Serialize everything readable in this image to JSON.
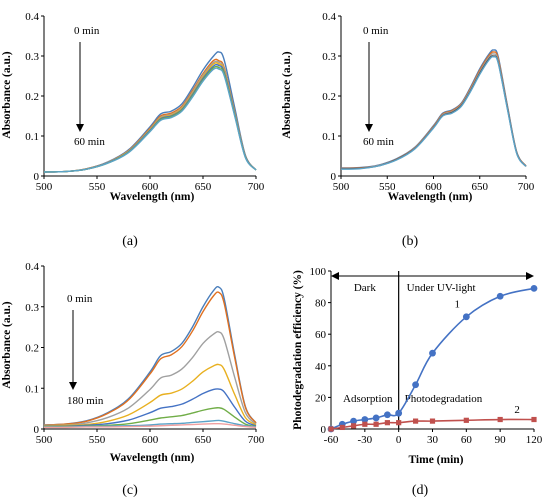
{
  "chart_data": [
    {
      "type": "line",
      "panel_label": "(a)",
      "xlabel": "Wavelength (nm)",
      "ylabel": "Absorbance (a.u.)",
      "xlim": [
        500,
        700
      ],
      "ylim": [
        0,
        0.4
      ],
      "x_ticks": [
        500,
        550,
        600,
        650,
        700
      ],
      "y_ticks": [
        0,
        0.1,
        0.2,
        0.3,
        0.4
      ],
      "annotations": {
        "start": "0 min",
        "end": "60 min"
      },
      "x": [
        500,
        520,
        540,
        560,
        580,
        600,
        610,
        620,
        630,
        640,
        650,
        660,
        665,
        670,
        680,
        690,
        700
      ],
      "series": [
        {
          "color": "#4a7ebb",
          "values": [
            0.01,
            0.011,
            0.018,
            0.035,
            0.066,
            0.123,
            0.155,
            0.162,
            0.18,
            0.22,
            0.265,
            0.3,
            0.31,
            0.29,
            0.17,
            0.052,
            0.015
          ]
        },
        {
          "color": "#e07020",
          "values": [
            0.01,
            0.011,
            0.018,
            0.034,
            0.064,
            0.119,
            0.15,
            0.157,
            0.174,
            0.213,
            0.256,
            0.289,
            0.288,
            0.271,
            0.16,
            0.05,
            0.015
          ]
        },
        {
          "color": "#a0a0a0",
          "values": [
            0.01,
            0.011,
            0.017,
            0.034,
            0.063,
            0.117,
            0.147,
            0.154,
            0.171,
            0.209,
            0.252,
            0.284,
            0.284,
            0.267,
            0.158,
            0.049,
            0.015
          ]
        },
        {
          "color": "#e8b020",
          "values": [
            0.01,
            0.011,
            0.017,
            0.033,
            0.062,
            0.116,
            0.145,
            0.152,
            0.169,
            0.206,
            0.248,
            0.28,
            0.28,
            0.263,
            0.156,
            0.048,
            0.015
          ]
        },
        {
          "color": "#4472c4",
          "values": [
            0.01,
            0.011,
            0.017,
            0.033,
            0.061,
            0.114,
            0.143,
            0.15,
            0.166,
            0.203,
            0.244,
            0.275,
            0.276,
            0.259,
            0.154,
            0.048,
            0.015
          ]
        },
        {
          "color": "#70ad47",
          "values": [
            0.01,
            0.011,
            0.017,
            0.032,
            0.06,
            0.112,
            0.141,
            0.148,
            0.164,
            0.2,
            0.24,
            0.271,
            0.271,
            0.255,
            0.151,
            0.047,
            0.015
          ]
        },
        {
          "color": "#5ba3c8",
          "values": [
            0.01,
            0.011,
            0.017,
            0.032,
            0.059,
            0.111,
            0.139,
            0.146,
            0.162,
            0.197,
            0.237,
            0.267,
            0.267,
            0.251,
            0.149,
            0.046,
            0.015
          ]
        }
      ]
    },
    {
      "type": "line",
      "panel_label": "(b)",
      "xlabel": "Wavelength (nm)",
      "ylabel": "Absorbance (a.u.)",
      "xlim": [
        500,
        700
      ],
      "ylim": [
        0,
        0.4
      ],
      "x_ticks": [
        500,
        550,
        600,
        650,
        700
      ],
      "y_ticks": [
        0,
        0.1,
        0.2,
        0.3,
        0.4
      ],
      "annotations": {
        "start": "0 min",
        "end": "60 min"
      },
      "x": [
        500,
        520,
        540,
        560,
        580,
        600,
        610,
        620,
        630,
        640,
        650,
        660,
        665,
        670,
        680,
        690,
        700
      ],
      "series": [
        {
          "color": "#4a7ebb",
          "values": [
            0.02,
            0.021,
            0.027,
            0.043,
            0.072,
            0.126,
            0.157,
            0.165,
            0.182,
            0.222,
            0.268,
            0.305,
            0.315,
            0.298,
            0.175,
            0.06,
            0.025
          ]
        },
        {
          "color": "#e07020",
          "values": [
            0.019,
            0.02,
            0.026,
            0.042,
            0.071,
            0.124,
            0.155,
            0.163,
            0.18,
            0.219,
            0.264,
            0.301,
            0.31,
            0.293,
            0.172,
            0.059,
            0.025
          ]
        },
        {
          "color": "#a0a0a0",
          "values": [
            0.018,
            0.019,
            0.026,
            0.041,
            0.07,
            0.122,
            0.153,
            0.161,
            0.178,
            0.216,
            0.26,
            0.297,
            0.305,
            0.288,
            0.17,
            0.058,
            0.024
          ]
        },
        {
          "color": "#555555",
          "values": [
            0.018,
            0.019,
            0.025,
            0.041,
            0.069,
            0.121,
            0.151,
            0.159,
            0.176,
            0.213,
            0.257,
            0.293,
            0.3,
            0.284,
            0.168,
            0.057,
            0.024
          ]
        },
        {
          "color": "#5ba3c8",
          "values": [
            0.017,
            0.018,
            0.025,
            0.04,
            0.068,
            0.12,
            0.15,
            0.157,
            0.174,
            0.211,
            0.254,
            0.29,
            0.298,
            0.282,
            0.166,
            0.056,
            0.024
          ]
        }
      ]
    },
    {
      "type": "line",
      "panel_label": "(c)",
      "xlabel": "Wavelength (nm)",
      "ylabel": "Absorbance (a.u.)",
      "xlim": [
        500,
        700
      ],
      "ylim": [
        0,
        0.4
      ],
      "x_ticks": [
        500,
        550,
        600,
        650,
        700
      ],
      "y_ticks": [
        0,
        0.1,
        0.2,
        0.3,
        0.4
      ],
      "annotations": {
        "start": "0 min",
        "end": "180 min"
      },
      "x": [
        500,
        520,
        540,
        560,
        580,
        600,
        610,
        620,
        630,
        640,
        650,
        660,
        665,
        670,
        680,
        690,
        700
      ],
      "series": [
        {
          "color": "#4a7ebb",
          "values": [
            0.01,
            0.012,
            0.02,
            0.04,
            0.075,
            0.14,
            0.18,
            0.19,
            0.21,
            0.25,
            0.3,
            0.34,
            0.348,
            0.32,
            0.18,
            0.055,
            0.015
          ]
        },
        {
          "color": "#e07020",
          "values": [
            0.01,
            0.012,
            0.019,
            0.038,
            0.072,
            0.135,
            0.172,
            0.182,
            0.202,
            0.24,
            0.288,
            0.327,
            0.335,
            0.308,
            0.174,
            0.053,
            0.015
          ]
        },
        {
          "color": "#a0a0a0",
          "values": [
            0.009,
            0.01,
            0.015,
            0.028,
            0.052,
            0.097,
            0.125,
            0.132,
            0.147,
            0.175,
            0.21,
            0.233,
            0.238,
            0.22,
            0.126,
            0.04,
            0.012
          ]
        },
        {
          "color": "#e8b020",
          "values": [
            0.008,
            0.009,
            0.011,
            0.019,
            0.035,
            0.065,
            0.083,
            0.088,
            0.098,
            0.117,
            0.14,
            0.155,
            0.158,
            0.146,
            0.084,
            0.028,
            0.01
          ]
        },
        {
          "color": "#4472c4",
          "values": [
            0.007,
            0.007,
            0.009,
            0.013,
            0.022,
            0.04,
            0.051,
            0.055,
            0.061,
            0.073,
            0.087,
            0.097,
            0.098,
            0.091,
            0.053,
            0.019,
            0.008
          ]
        },
        {
          "color": "#70ad47",
          "values": [
            0.006,
            0.006,
            0.007,
            0.009,
            0.013,
            0.022,
            0.027,
            0.03,
            0.033,
            0.039,
            0.046,
            0.051,
            0.052,
            0.048,
            0.029,
            0.012,
            0.006
          ]
        },
        {
          "color": "#5ba3c8",
          "values": [
            0.005,
            0.005,
            0.006,
            0.007,
            0.008,
            0.01,
            0.012,
            0.013,
            0.014,
            0.016,
            0.018,
            0.02,
            0.021,
            0.019,
            0.013,
            0.008,
            0.005
          ]
        },
        {
          "color": "#f0a0a0",
          "values": [
            0.004,
            0.004,
            0.005,
            0.005,
            0.006,
            0.007,
            0.008,
            0.009,
            0.01,
            0.011,
            0.012,
            0.013,
            0.013,
            0.012,
            0.009,
            0.006,
            0.004
          ]
        }
      ]
    },
    {
      "type": "line",
      "panel_label": "(d)",
      "xlabel": "Time (min)",
      "ylabel": "Photodegradation efficiency (%)",
      "xlim": [
        -60,
        120
      ],
      "ylim": [
        0,
        100
      ],
      "x_ticks": [
        -60,
        -30,
        0,
        30,
        60,
        90,
        120
      ],
      "y_ticks": [
        0,
        20,
        40,
        60,
        80,
        100
      ],
      "region_labels": {
        "left": "Dark",
        "right": "Under UV-light",
        "phase_left": "Adsorption",
        "phase_right": "Photodegradation"
      },
      "series": [
        {
          "name": "1",
          "color": "#4472c4",
          "marker": "circle",
          "x": [
            -60,
            -50,
            -40,
            -30,
            -20,
            -10,
            0,
            15,
            30,
            60,
            90,
            120
          ],
          "values": [
            0,
            3,
            5,
            6,
            7,
            9,
            10,
            28,
            48,
            71,
            84,
            89
          ]
        },
        {
          "name": "2",
          "color": "#c0504d",
          "marker": "square",
          "x": [
            -60,
            -50,
            -40,
            -30,
            -20,
            -10,
            0,
            15,
            30,
            60,
            90,
            120
          ],
          "values": [
            0,
            1,
            2,
            3,
            3,
            4,
            4,
            5,
            5,
            5.5,
            6,
            6
          ]
        }
      ]
    }
  ]
}
